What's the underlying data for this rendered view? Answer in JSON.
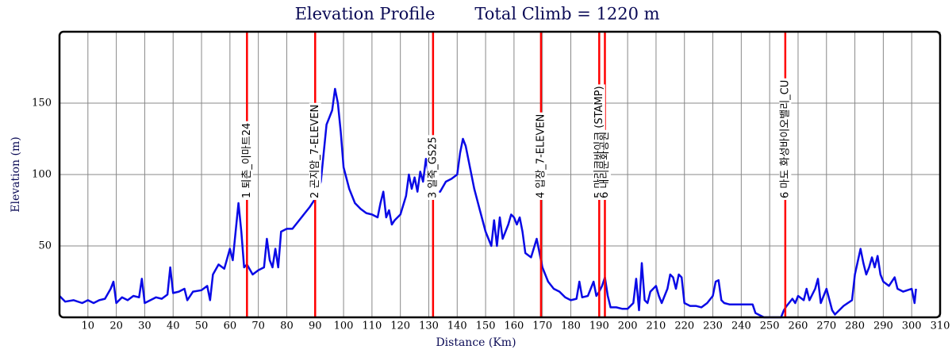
{
  "chart_data": {
    "type": "line",
    "title": "Elevation Profile",
    "subtitle": "Total Climb = 1220 m",
    "x_label": "Distance (Km)",
    "y_label": "Elevation (m)",
    "xlim": [
      0,
      310
    ],
    "ylim": [
      0,
      200
    ],
    "xticks": [
      10,
      20,
      30,
      40,
      50,
      60,
      70,
      80,
      90,
      100,
      110,
      120,
      130,
      140,
      150,
      160,
      170,
      180,
      190,
      200,
      210,
      220,
      230,
      240,
      250,
      260,
      270,
      280,
      290,
      300,
      310
    ],
    "yticks": [
      50,
      100,
      150
    ],
    "grid": true,
    "x": [
      0,
      2,
      5,
      8,
      10,
      12,
      14,
      16,
      18,
      19,
      20,
      22,
      24,
      26,
      28,
      29,
      30,
      32,
      34,
      36,
      38,
      39,
      40,
      42,
      44,
      45,
      47,
      50,
      52,
      53,
      54,
      56,
      58,
      60,
      61,
      62,
      63,
      64,
      65,
      66,
      68,
      70,
      72,
      73,
      74,
      75,
      76,
      77,
      78,
      80,
      82,
      84,
      86,
      88,
      90,
      92,
      94,
      95,
      96,
      97,
      98,
      99,
      100,
      102,
      104,
      106,
      108,
      110,
      112,
      113,
      114,
      115,
      116,
      117,
      118,
      120,
      122,
      123,
      124,
      125,
      126,
      127,
      128,
      129,
      130,
      132,
      134,
      136,
      138,
      140,
      141,
      142,
      143,
      144,
      146,
      148,
      150,
      152,
      153,
      154,
      155,
      156,
      158,
      159,
      160,
      161,
      162,
      163,
      164,
      166,
      168,
      170,
      172,
      174,
      176,
      178,
      180,
      182,
      183,
      184,
      186,
      188,
      189,
      190,
      191,
      192,
      193,
      194,
      196,
      198,
      200,
      202,
      203,
      204,
      205,
      206,
      207,
      208,
      210,
      211,
      212,
      214,
      215,
      216,
      217,
      218,
      219,
      220,
      222,
      224,
      226,
      228,
      230,
      231,
      232,
      233,
      234,
      236,
      240,
      244,
      245,
      248,
      252,
      254,
      255,
      256,
      258,
      259,
      260,
      262,
      263,
      264,
      266,
      267,
      268,
      270,
      272,
      273,
      276,
      279,
      280,
      282,
      283,
      284,
      285,
      286,
      287,
      288,
      289,
      290,
      292,
      294,
      295,
      297,
      300,
      301,
      301.5
    ],
    "series": [
      {
        "name": "Elevation",
        "color": "#0a0ae6",
        "values": [
          15,
          11,
          12,
          10,
          12,
          10,
          12,
          13,
          20,
          25,
          10,
          14,
          12,
          15,
          14,
          27,
          10,
          12,
          14,
          13,
          16,
          35,
          17,
          18,
          20,
          12,
          18,
          19,
          22,
          12,
          30,
          37,
          34,
          48,
          40,
          60,
          80,
          60,
          35,
          37,
          30,
          33,
          35,
          55,
          40,
          35,
          48,
          35,
          60,
          62,
          62,
          67,
          72,
          77,
          83,
          95,
          135,
          140,
          145,
          160,
          150,
          130,
          105,
          90,
          80,
          76,
          73,
          72,
          70,
          80,
          88,
          70,
          75,
          65,
          68,
          72,
          85,
          100,
          90,
          98,
          88,
          102,
          95,
          111,
          100,
          88,
          88,
          95,
          97,
          100,
          115,
          125,
          120,
          110,
          90,
          75,
          60,
          50,
          68,
          50,
          70,
          55,
          65,
          72,
          70,
          65,
          70,
          60,
          45,
          42,
          55,
          35,
          25,
          20,
          18,
          14,
          12,
          13,
          25,
          14,
          15,
          25,
          15,
          18,
          22,
          28,
          15,
          7,
          7,
          6,
          6,
          10,
          27,
          5,
          38,
          12,
          10,
          18,
          22,
          15,
          10,
          20,
          30,
          28,
          20,
          30,
          28,
          10,
          8,
          8,
          7,
          10,
          15,
          25,
          26,
          12,
          10,
          9,
          9,
          9,
          3,
          0,
          0,
          0,
          5,
          8,
          13,
          10,
          15,
          12,
          20,
          12,
          20,
          27,
          10,
          20,
          5,
          2,
          8,
          12,
          30,
          48,
          38,
          30,
          35,
          42,
          35,
          43,
          30,
          25,
          22,
          28,
          20,
          18,
          20,
          10,
          20
        ]
      }
    ],
    "markers": {
      "color": "#ff0000",
      "x": [
        66,
        90,
        131.5,
        169.5,
        190,
        192,
        255.5
      ],
      "labels": [
        "1 퇴촌_이마트24",
        "2 곤지암_7-ELEVEN",
        "3 일죽_GS25",
        "4 입장_7-ELEVEN",
        "5 마리코바이크 (STAMP)",
        "6 내리문화공원",
        "6 마도 화성바이오밸리_CU"
      ]
    }
  }
}
